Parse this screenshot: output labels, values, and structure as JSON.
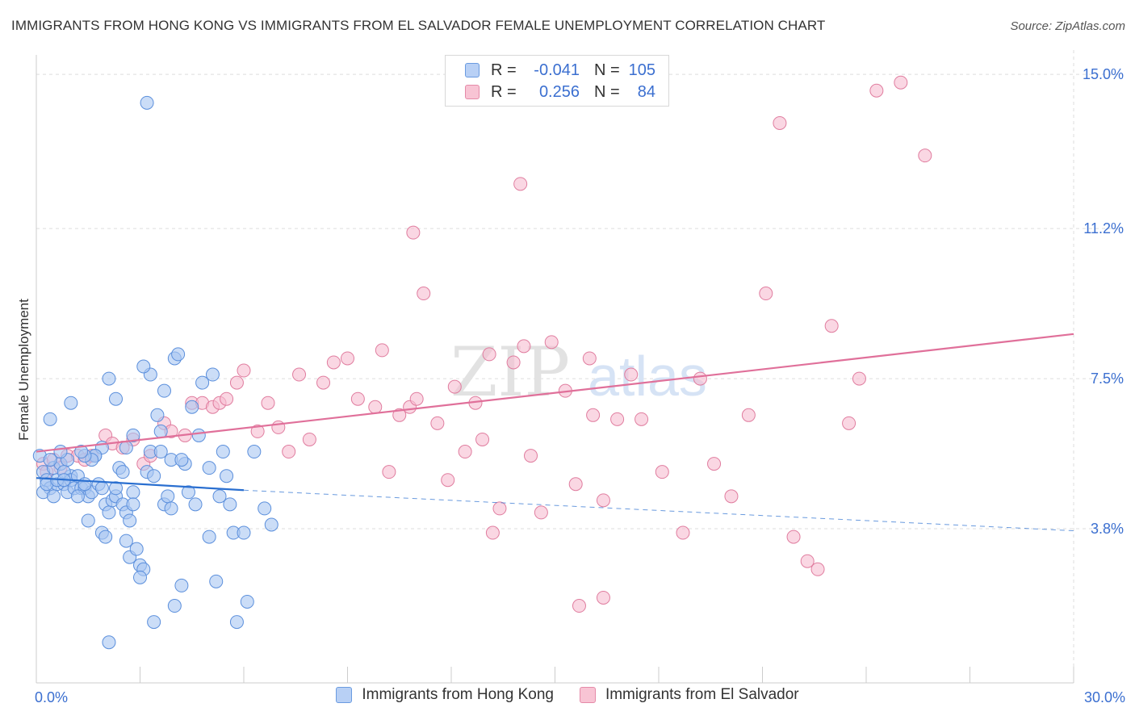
{
  "title": "IMMIGRANTS FROM HONG KONG VS IMMIGRANTS FROM EL SALVADOR FEMALE UNEMPLOYMENT CORRELATION CHART",
  "source": "Source: ZipAtlas.com",
  "watermark": {
    "zip": "ZIP",
    "atlas": "atlas"
  },
  "legend": {
    "rows": [
      {
        "r_label": "R =",
        "r_value": "-0.041",
        "n_label": "N =",
        "n_value": "105",
        "fill": "#b8d0f5",
        "stroke": "#6a9be0"
      },
      {
        "r_label": "R =",
        "r_value": "0.256",
        "n_label": "N =",
        "n_value": "84",
        "fill": "#f8c4d4",
        "stroke": "#e58aa8"
      }
    ]
  },
  "bottom_legend": {
    "hk_label": "Immigrants from Hong Kong",
    "es_label": "Immigrants from El Salvador"
  },
  "colors": {
    "hk_fill": "#a9c6f2",
    "hk_stroke": "#5b8fdc",
    "hk_line": "#2a6fd0",
    "es_fill": "#f7bcd0",
    "es_stroke": "#e07d9f",
    "es_line": "#e0709a",
    "grid": "#dddddd",
    "tick_text": "#3b6fd0"
  },
  "chart_data": {
    "type": "scatter",
    "xlabel": "",
    "ylabel": "Female Unemployment",
    "xlim": [
      0,
      30
    ],
    "ylim": [
      0,
      15.6
    ],
    "x_ticks": [
      {
        "value": 0,
        "label": "0.0%"
      },
      {
        "value": 30,
        "label": "30.0%"
      }
    ],
    "y_ticks": [
      {
        "value": 3.8,
        "label": "3.8%"
      },
      {
        "value": 7.5,
        "label": "7.5%"
      },
      {
        "value": 11.2,
        "label": "11.2%"
      },
      {
        "value": 15.0,
        "label": "15.0%"
      }
    ],
    "grid": true,
    "legend_position": "top-center",
    "series": [
      {
        "name": "Immigrants from Hong Kong",
        "points": [
          [
            0.1,
            5.6
          ],
          [
            0.2,
            5.2
          ],
          [
            0.3,
            5.0
          ],
          [
            0.4,
            4.8
          ],
          [
            0.5,
            5.3
          ],
          [
            0.6,
            4.9
          ],
          [
            0.7,
            5.4
          ],
          [
            0.8,
            4.9
          ],
          [
            0.9,
            5.5
          ],
          [
            1.0,
            5.1
          ],
          [
            0.2,
            4.7
          ],
          [
            0.3,
            4.9
          ],
          [
            0.4,
            5.5
          ],
          [
            0.5,
            4.6
          ],
          [
            0.6,
            5.0
          ],
          [
            0.7,
            5.7
          ],
          [
            0.8,
            5.2
          ],
          [
            0.9,
            4.7
          ],
          [
            1.0,
            5.0
          ],
          [
            1.1,
            4.8
          ],
          [
            1.2,
            5.1
          ],
          [
            1.3,
            4.8
          ],
          [
            1.4,
            4.8
          ],
          [
            1.5,
            4.6
          ],
          [
            1.6,
            4.7
          ],
          [
            1.7,
            5.6
          ],
          [
            1.8,
            4.9
          ],
          [
            1.9,
            5.8
          ],
          [
            2.0,
            4.4
          ],
          [
            2.1,
            4.2
          ],
          [
            2.2,
            4.5
          ],
          [
            2.3,
            4.6
          ],
          [
            2.4,
            5.3
          ],
          [
            2.5,
            4.4
          ],
          [
            2.6,
            4.2
          ],
          [
            2.7,
            4.0
          ],
          [
            2.8,
            4.7
          ],
          [
            1.0,
            6.9
          ],
          [
            1.2,
            4.6
          ],
          [
            1.4,
            4.9
          ],
          [
            0.4,
            6.5
          ],
          [
            0.8,
            5.0
          ],
          [
            1.5,
            4.0
          ],
          [
            1.7,
            5.6
          ],
          [
            1.9,
            4.8
          ],
          [
            2.1,
            7.5
          ],
          [
            2.3,
            7.0
          ],
          [
            2.5,
            5.2
          ],
          [
            1.9,
            3.7
          ],
          [
            2.3,
            4.8
          ],
          [
            2.6,
            3.5
          ],
          [
            2.7,
            3.1
          ],
          [
            2.8,
            4.4
          ],
          [
            2.9,
            3.3
          ],
          [
            3.0,
            2.9
          ],
          [
            3.1,
            2.8
          ],
          [
            3.2,
            5.2
          ],
          [
            3.3,
            5.7
          ],
          [
            3.4,
            5.1
          ],
          [
            3.5,
            6.6
          ],
          [
            3.6,
            6.2
          ],
          [
            3.7,
            4.4
          ],
          [
            3.8,
            4.6
          ],
          [
            3.9,
            5.5
          ],
          [
            4.0,
            8.0
          ],
          [
            4.1,
            8.1
          ],
          [
            4.3,
            5.4
          ],
          [
            4.4,
            4.7
          ],
          [
            4.5,
            6.8
          ],
          [
            4.6,
            4.4
          ],
          [
            4.7,
            6.1
          ],
          [
            4.8,
            7.4
          ],
          [
            5.0,
            3.6
          ],
          [
            5.1,
            7.6
          ],
          [
            5.3,
            4.6
          ],
          [
            5.4,
            5.7
          ],
          [
            5.5,
            5.1
          ],
          [
            5.6,
            4.4
          ],
          [
            5.7,
            3.7
          ],
          [
            6.0,
            3.7
          ],
          [
            6.1,
            2.0
          ],
          [
            5.0,
            5.3
          ],
          [
            4.2,
            2.4
          ],
          [
            4.0,
            1.9
          ],
          [
            3.4,
            1.5
          ],
          [
            5.2,
            2.5
          ],
          [
            5.8,
            1.5
          ],
          [
            6.3,
            5.7
          ],
          [
            6.6,
            4.3
          ],
          [
            6.8,
            3.9
          ],
          [
            2.0,
            3.6
          ],
          [
            2.8,
            6.1
          ],
          [
            3.0,
            2.6
          ],
          [
            3.3,
            7.6
          ],
          [
            3.6,
            5.7
          ],
          [
            3.9,
            4.3
          ],
          [
            4.2,
            5.5
          ],
          [
            3.1,
            7.8
          ],
          [
            3.7,
            7.2
          ],
          [
            2.6,
            5.8
          ],
          [
            1.6,
            5.5
          ],
          [
            1.4,
            5.6
          ],
          [
            1.3,
            5.7
          ],
          [
            3.2,
            14.3
          ],
          [
            2.1,
            1.0
          ]
        ]
      },
      {
        "name": "Immigrants from El Salvador",
        "points": [
          [
            0.2,
            5.4
          ],
          [
            0.3,
            5.2
          ],
          [
            0.5,
            5.5
          ],
          [
            0.7,
            5.3
          ],
          [
            0.9,
            5.6
          ],
          [
            1.2,
            5.6
          ],
          [
            1.4,
            5.5
          ],
          [
            1.6,
            5.6
          ],
          [
            2.0,
            6.1
          ],
          [
            2.2,
            5.9
          ],
          [
            2.5,
            5.8
          ],
          [
            2.8,
            6.0
          ],
          [
            3.1,
            5.4
          ],
          [
            3.3,
            5.6
          ],
          [
            3.7,
            6.4
          ],
          [
            3.9,
            6.2
          ],
          [
            4.3,
            6.1
          ],
          [
            4.5,
            6.9
          ],
          [
            4.8,
            6.9
          ],
          [
            5.1,
            6.8
          ],
          [
            5.3,
            6.9
          ],
          [
            5.5,
            7.0
          ],
          [
            5.8,
            7.4
          ],
          [
            6.0,
            7.7
          ],
          [
            6.4,
            6.2
          ],
          [
            6.7,
            6.9
          ],
          [
            7.0,
            6.3
          ],
          [
            7.3,
            5.7
          ],
          [
            7.6,
            7.6
          ],
          [
            7.9,
            6.0
          ],
          [
            8.3,
            7.4
          ],
          [
            8.6,
            7.9
          ],
          [
            9.0,
            8.0
          ],
          [
            9.3,
            7.0
          ],
          [
            9.8,
            6.8
          ],
          [
            10.0,
            8.2
          ],
          [
            10.2,
            5.2
          ],
          [
            10.5,
            6.6
          ],
          [
            10.8,
            6.8
          ],
          [
            11.0,
            7.0
          ],
          [
            11.2,
            9.6
          ],
          [
            11.6,
            6.4
          ],
          [
            11.9,
            5.0
          ],
          [
            12.1,
            7.3
          ],
          [
            12.4,
            5.7
          ],
          [
            12.7,
            6.9
          ],
          [
            12.9,
            6.0
          ],
          [
            13.1,
            8.1
          ],
          [
            13.4,
            4.3
          ],
          [
            13.8,
            7.9
          ],
          [
            14.1,
            8.3
          ],
          [
            14.3,
            5.6
          ],
          [
            14.6,
            4.2
          ],
          [
            14.9,
            8.4
          ],
          [
            15.3,
            7.2
          ],
          [
            15.6,
            4.9
          ],
          [
            16.1,
            6.6
          ],
          [
            16.4,
            4.5
          ],
          [
            16.8,
            6.5
          ],
          [
            17.2,
            7.6
          ],
          [
            17.5,
            6.5
          ],
          [
            18.1,
            5.2
          ],
          [
            18.7,
            3.7
          ],
          [
            19.2,
            7.5
          ],
          [
            19.6,
            5.4
          ],
          [
            20.1,
            4.6
          ],
          [
            20.6,
            6.6
          ],
          [
            21.1,
            9.6
          ],
          [
            21.5,
            13.8
          ],
          [
            21.9,
            3.6
          ],
          [
            22.3,
            3.0
          ],
          [
            22.6,
            2.8
          ],
          [
            23.0,
            8.8
          ],
          [
            23.5,
            6.4
          ],
          [
            23.8,
            7.5
          ],
          [
            24.3,
            14.6
          ],
          [
            25.0,
            14.8
          ],
          [
            25.7,
            13.0
          ],
          [
            16.0,
            8.0
          ],
          [
            14.0,
            12.3
          ],
          [
            15.7,
            1.9
          ],
          [
            16.4,
            2.1
          ],
          [
            13.2,
            3.7
          ],
          [
            10.9,
            11.1
          ]
        ]
      }
    ],
    "trend_lines": [
      {
        "series": "Immigrants from Hong Kong",
        "solid": [
          [
            0.0,
            5.05
          ],
          [
            6.0,
            4.75
          ]
        ],
        "dashed": [
          [
            6.0,
            4.75
          ],
          [
            30.0,
            3.75
          ]
        ]
      },
      {
        "series": "Immigrants from El Salvador",
        "solid": [
          [
            0.0,
            5.7
          ],
          [
            30.0,
            8.6
          ]
        ]
      }
    ]
  }
}
